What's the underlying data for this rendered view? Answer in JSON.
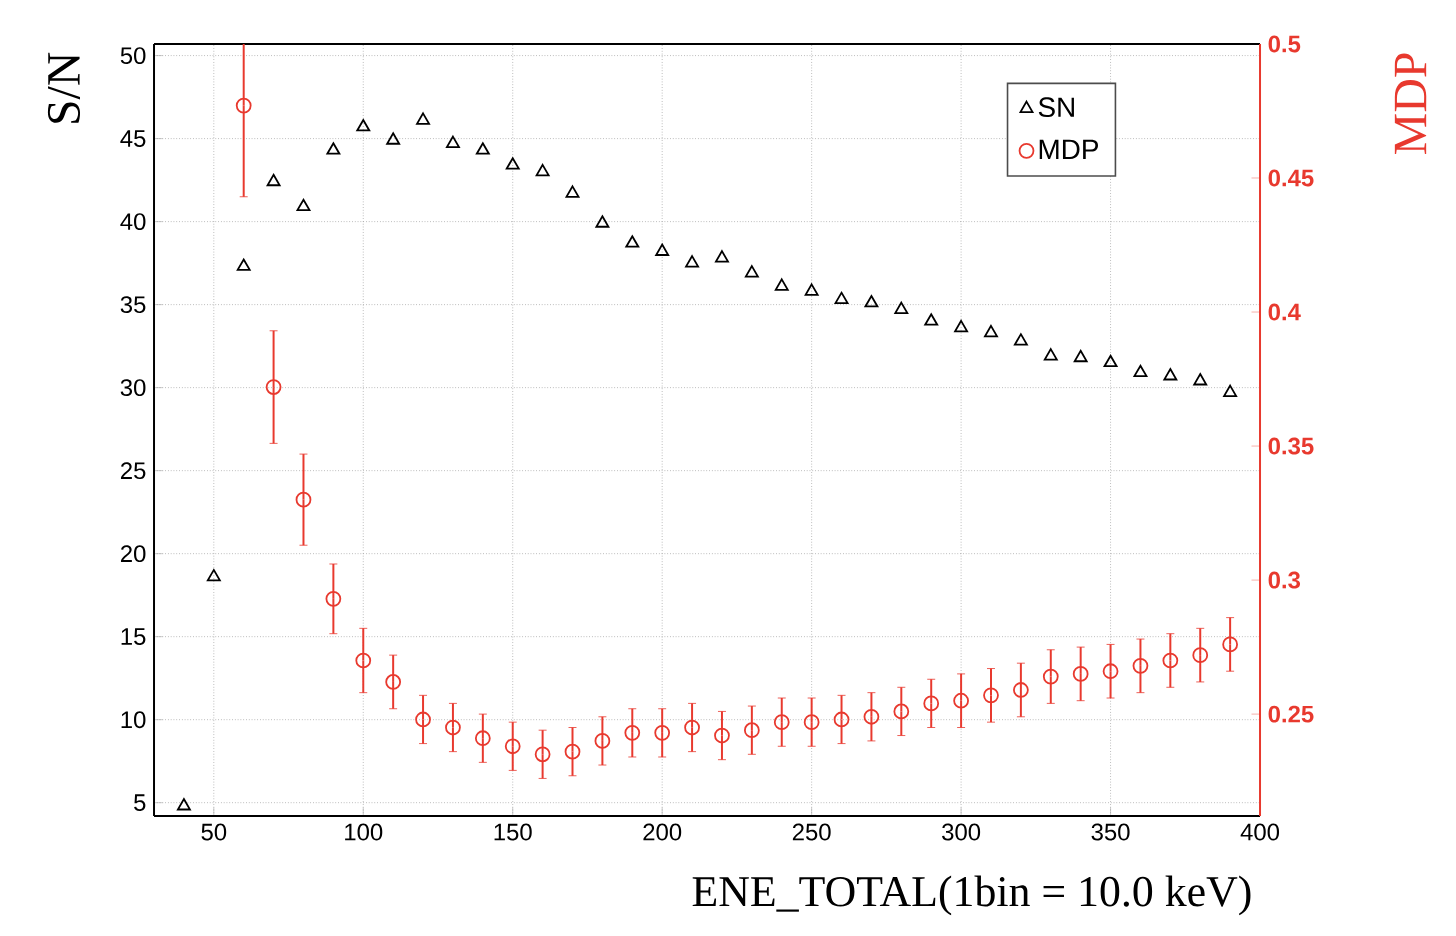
{
  "chart_data": {
    "type": "scatter",
    "xlabel": "ENE_TOTAL(1bin = 10.0 keV)",
    "ylabel": "S/N",
    "y2label": "MDP",
    "x": [
      40,
      50,
      60,
      70,
      80,
      90,
      100,
      110,
      120,
      130,
      140,
      150,
      160,
      170,
      180,
      190,
      200,
      210,
      220,
      230,
      240,
      250,
      260,
      270,
      280,
      290,
      300,
      310,
      320,
      330,
      340,
      350,
      360,
      370,
      380,
      390
    ],
    "series": [
      {
        "name": "SN",
        "color": "#000000",
        "marker": "triangle",
        "values": [
          4.8,
          18.6,
          37.3,
          42.4,
          40.9,
          44.3,
          45.7,
          44.9,
          46.1,
          44.7,
          44.3,
          43.4,
          43.0,
          41.7,
          39.9,
          38.7,
          38.2,
          37.5,
          37.8,
          36.9,
          36.1,
          35.8,
          35.3,
          35.1,
          34.7,
          34.0,
          33.6,
          33.3,
          32.8,
          31.9,
          31.8,
          31.5,
          30.9,
          30.7,
          30.4,
          29.7
        ]
      },
      {
        "name": "MDP",
        "color": "#e8392e",
        "marker": "circle",
        "axis": "y2",
        "x": [
          60,
          70,
          80,
          90,
          100,
          110,
          120,
          130,
          140,
          150,
          160,
          170,
          180,
          190,
          200,
          210,
          220,
          230,
          240,
          250,
          260,
          270,
          280,
          290,
          300,
          310,
          320,
          330,
          340,
          350,
          360,
          370,
          380,
          390
        ],
        "values": [
          0.477,
          0.372,
          0.33,
          0.293,
          0.27,
          0.262,
          0.248,
          0.245,
          0.241,
          0.238,
          0.235,
          0.236,
          0.24,
          0.243,
          0.243,
          0.245,
          0.242,
          0.244,
          0.247,
          0.247,
          0.248,
          0.249,
          0.251,
          0.254,
          0.255,
          0.257,
          0.259,
          0.264,
          0.265,
          0.266,
          0.268,
          0.27,
          0.272,
          0.276
        ],
        "errors": [
          0.034,
          0.021,
          0.017,
          0.013,
          0.012,
          0.01,
          0.009,
          0.009,
          0.009,
          0.009,
          0.009,
          0.009,
          0.009,
          0.009,
          0.009,
          0.009,
          0.009,
          0.009,
          0.009,
          0.009,
          0.009,
          0.009,
          0.009,
          0.009,
          0.01,
          0.01,
          0.01,
          0.01,
          0.01,
          0.01,
          0.01,
          0.01,
          0.01,
          0.01
        ]
      }
    ],
    "xlim": [
      30,
      400
    ],
    "xticks": [
      50,
      100,
      150,
      200,
      250,
      300,
      350,
      400
    ],
    "ylim": [
      4.2,
      50.7
    ],
    "yticks": [
      5,
      10,
      15,
      20,
      25,
      30,
      35,
      40,
      45,
      50
    ],
    "y2lim": [
      0.212,
      0.5
    ],
    "y2ticks": [
      0.25,
      0.3,
      0.35,
      0.4,
      0.45,
      0.5
    ],
    "grid": true,
    "legend": "top right"
  }
}
